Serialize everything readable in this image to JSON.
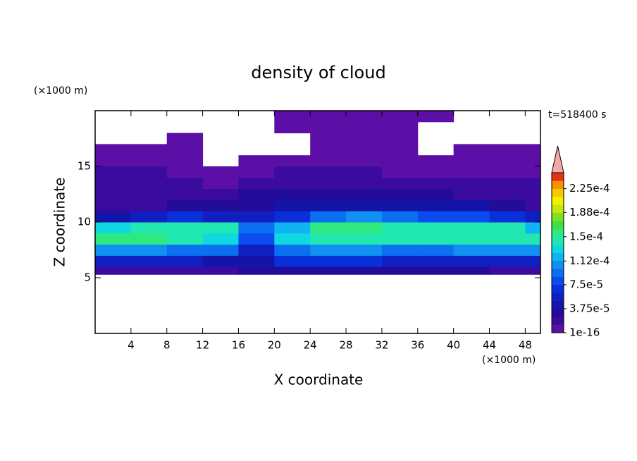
{
  "chart_data": {
    "type": "contour",
    "title": "density of cloud",
    "xlabel": "X coordinate",
    "ylabel": "Z coordinate",
    "x_unit": "(×1000 m)",
    "y_unit": "(×1000 m)",
    "time_label": "t=518400 s",
    "xlim": [
      0,
      49.7
    ],
    "ylim": [
      0,
      20
    ],
    "xticks": [
      4,
      8,
      12,
      16,
      20,
      24,
      28,
      32,
      36,
      40,
      44,
      48
    ],
    "yticks": [
      5,
      10,
      15
    ],
    "x_edges": [
      0,
      4,
      8,
      12,
      16,
      20,
      24,
      28,
      32,
      36,
      40,
      44,
      48,
      49.7
    ],
    "z_edges": [
      5.3,
      6,
      7,
      8,
      9,
      10,
      11,
      12,
      13,
      14,
      15,
      16,
      17,
      18,
      19,
      20
    ],
    "z": [
      [
        2e-05,
        2e-05,
        2.5e-05,
        2.5e-05,
        3e-05,
        3e-05,
        3e-05,
        3e-05,
        3e-05,
        3e-05,
        3e-05,
        2.5e-05,
        2.5e-05
      ],
      [
        6e-05,
        6e-05,
        6e-05,
        5e-05,
        4e-05,
        7e-05,
        7e-05,
        7e-05,
        6e-05,
        6e-05,
        6e-05,
        6e-05,
        6e-05
      ],
      [
        0.00011,
        0.00011,
        0.0001,
        9e-05,
        6e-05,
        0.0001,
        0.00011,
        0.00011,
        0.0001,
        0.0001,
        0.00011,
        0.00011,
        0.00011
      ],
      [
        0.000155,
        0.00016,
        0.00015,
        0.00013,
        8e-05,
        0.000135,
        0.00015,
        0.00015,
        0.00014,
        0.000145,
        0.000145,
        0.00014,
        0.00014
      ],
      [
        0.000135,
        0.00014,
        0.00015,
        0.000145,
        9e-05,
        0.00012,
        0.000155,
        0.00016,
        0.00015,
        0.00014,
        0.00015,
        0.000145,
        0.00012
      ],
      [
        5e-05,
        6e-05,
        7e-05,
        6e-05,
        6e-05,
        7e-05,
        0.0001,
        0.000105,
        9e-05,
        8e-05,
        8e-05,
        7e-05,
        6e-05
      ],
      [
        1.5e-05,
        2e-05,
        3e-05,
        3e-05,
        3.5e-05,
        4e-05,
        5e-05,
        5e-05,
        5e-05,
        4.5e-05,
        4e-05,
        3e-05,
        2e-05
      ],
      [
        2e-05,
        2e-05,
        2.5e-05,
        2.5e-05,
        3e-05,
        3e-05,
        3e-05,
        3e-05,
        3e-05,
        3e-05,
        2.5e-05,
        2e-05,
        2e-05
      ],
      [
        2.5e-05,
        2e-05,
        1.5e-05,
        1e-05,
        1.5e-05,
        2e-05,
        2e-05,
        2e-05,
        2e-05,
        1.5e-05,
        1.5e-05,
        1.5e-05,
        1.5e-05
      ],
      [
        1.5e-05,
        1.5e-05,
        1e-05,
        8e-06,
        1e-05,
        1.5e-05,
        1.5e-05,
        1.5e-05,
        1e-05,
        1e-05,
        1e-05,
        8e-06,
        1e-05
      ],
      [
        1e-05,
        1e-05,
        5e-06,
        null,
        5e-06,
        1e-05,
        1e-05,
        1e-05,
        5e-06,
        5e-06,
        5e-06,
        5e-06,
        5e-06
      ],
      [
        5e-06,
        5e-06,
        5e-06,
        null,
        null,
        null,
        5e-06,
        5e-06,
        5e-06,
        null,
        5e-06,
        5e-06,
        5e-06
      ],
      [
        null,
        null,
        5e-06,
        null,
        null,
        null,
        5e-06,
        5e-06,
        5e-06,
        null,
        null,
        null,
        null
      ],
      [
        null,
        null,
        null,
        null,
        null,
        5e-06,
        5e-06,
        5e-06,
        5e-06,
        null,
        null,
        null,
        null
      ],
      [
        null,
        null,
        null,
        null,
        null,
        5e-06,
        5e-06,
        5e-06,
        5e-06,
        5e-06,
        null,
        null,
        null
      ]
    ],
    "colorbar": {
      "lim": [
        1e-16,
        0.00025
      ],
      "ticks": [
        {
          "value": 1e-16,
          "label": "1e-16"
        },
        {
          "value": 3.75e-05,
          "label": "3.75e-5"
        },
        {
          "value": 7.5e-05,
          "label": "7.5e-5"
        },
        {
          "value": 0.000112,
          "label": "1.12e-4"
        },
        {
          "value": 0.00015,
          "label": "1.5e-4"
        },
        {
          "value": 0.000188,
          "label": "1.88e-4"
        },
        {
          "value": 0.000225,
          "label": "2.25e-4"
        }
      ],
      "colors": [
        "#5b0fa6",
        "#3a0b9e",
        "#230c9a",
        "#1414a8",
        "#1020c0",
        "#0830d8",
        "#0a4cf0",
        "#0a70f0",
        "#1090f0",
        "#10b4f0",
        "#10d8e0",
        "#20e8b0",
        "#30e880",
        "#40e040",
        "#80e020",
        "#c0e810",
        "#f0f000",
        "#f8c800",
        "#f89000",
        "#e83010"
      ],
      "extend_color": "#f4a8a8"
    }
  }
}
